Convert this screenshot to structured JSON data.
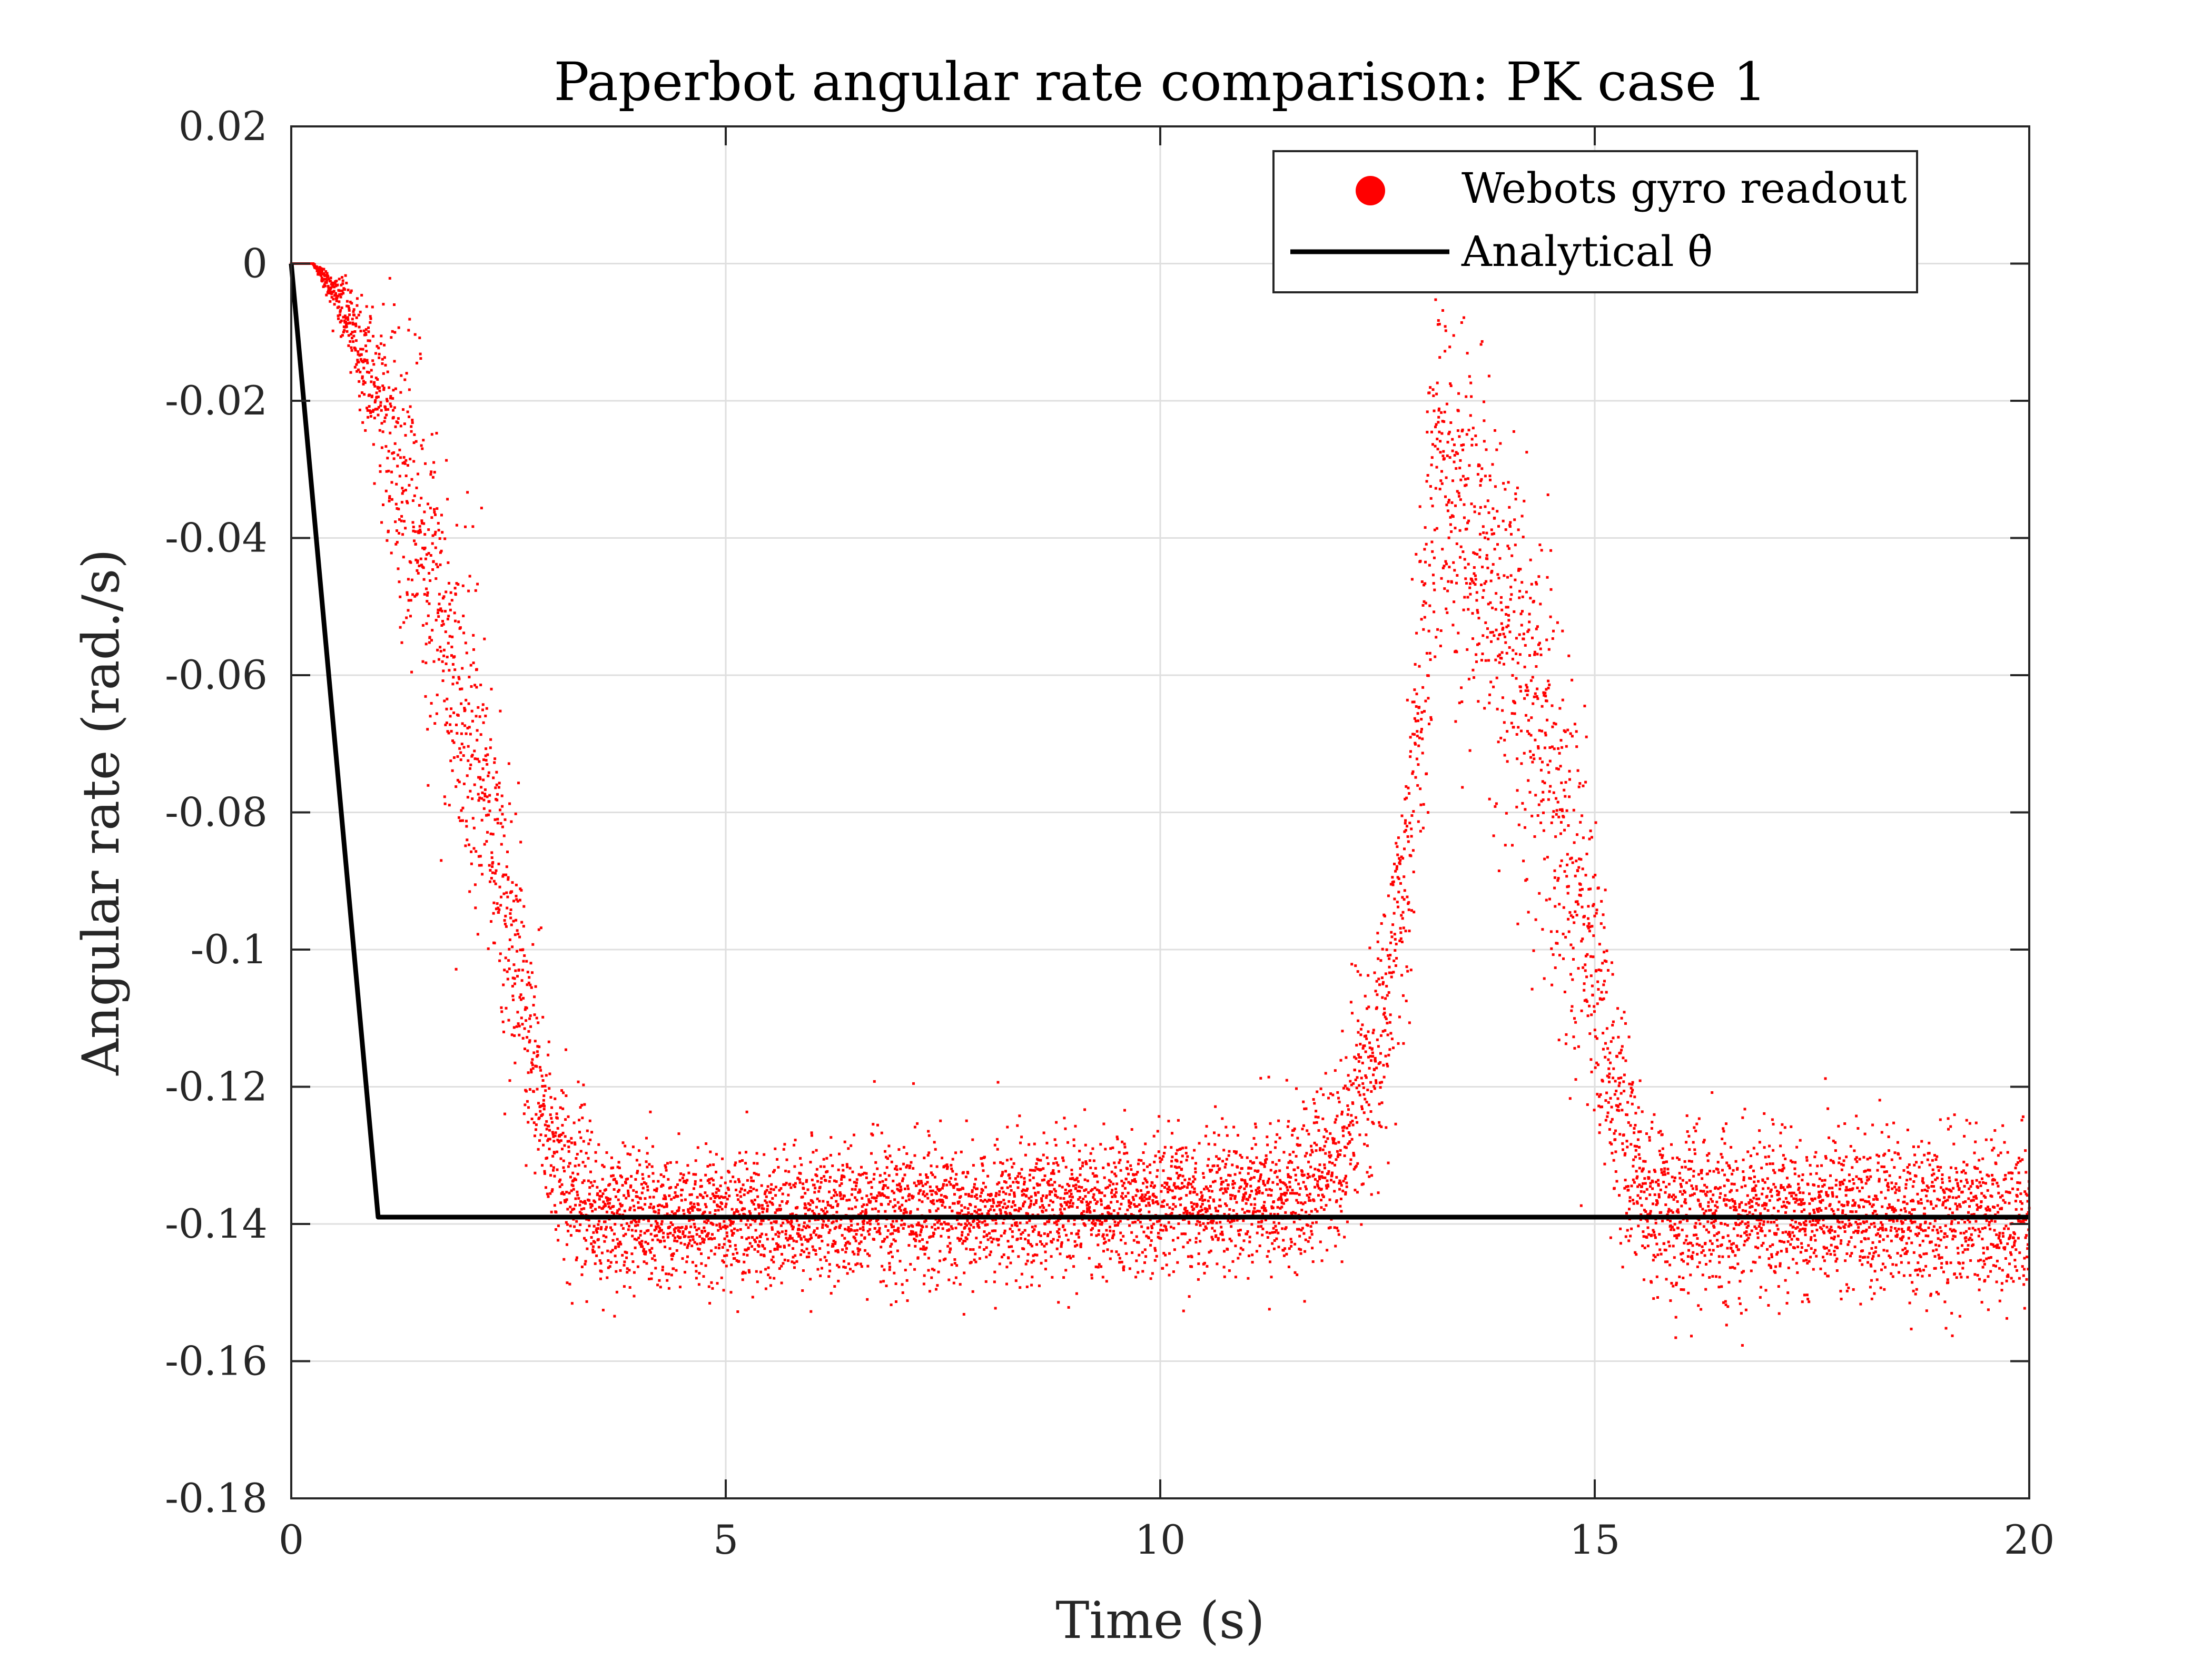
{
  "chart_data": {
    "type": "scatter",
    "title": "Paperbot angular rate comparison: PK case 1",
    "xlabel": "Time (s)",
    "ylabel": "Angular rate (rad./s)",
    "xlim": [
      0,
      20
    ],
    "ylim": [
      -0.18,
      0.02
    ],
    "x_ticks": [
      0,
      5,
      10,
      15,
      20
    ],
    "x_tick_labels": [
      "0",
      "5",
      "10",
      "15",
      "20"
    ],
    "y_ticks": [
      0.02,
      0,
      -0.02,
      -0.04,
      -0.06,
      -0.08,
      -0.1,
      -0.12,
      -0.14,
      -0.16,
      -0.18
    ],
    "y_tick_labels": [
      "0.02",
      "0",
      "-0.02",
      "-0.04",
      "-0.06",
      "-0.08",
      "-0.1",
      "-0.12",
      "-0.14",
      "-0.16",
      "-0.18"
    ],
    "grid": true,
    "legend_position": "top-right",
    "series": [
      {
        "name": "Webots gyro readout",
        "style": "scatter",
        "color": "#ff0000",
        "sampling": {
          "t_start": 0,
          "t_end": 20,
          "n_points": 8000
        },
        "envelope": [
          {
            "t": 0.0,
            "mean": 0.0,
            "spread": 0.0
          },
          {
            "t": 0.25,
            "mean": 0.0,
            "spread": 0.0
          },
          {
            "t": 0.5,
            "mean": -0.004,
            "spread": 0.003
          },
          {
            "t": 1.0,
            "mean": -0.018,
            "spread": 0.012
          },
          {
            "t": 1.5,
            "mean": -0.04,
            "spread": 0.02
          },
          {
            "t": 2.0,
            "mean": -0.065,
            "spread": 0.022
          },
          {
            "t": 2.5,
            "mean": -0.095,
            "spread": 0.02
          },
          {
            "t": 3.0,
            "mean": -0.13,
            "spread": 0.012
          },
          {
            "t": 3.5,
            "mean": -0.139,
            "spread": 0.009
          },
          {
            "t": 6.0,
            "mean": -0.139,
            "spread": 0.009
          },
          {
            "t": 10.0,
            "mean": -0.137,
            "spread": 0.009
          },
          {
            "t": 11.5,
            "mean": -0.136,
            "spread": 0.01
          },
          {
            "t": 12.0,
            "mean": -0.132,
            "spread": 0.012
          },
          {
            "t": 12.5,
            "mean": -0.115,
            "spread": 0.015
          },
          {
            "t": 12.8,
            "mean": -0.09,
            "spread": 0.022
          },
          {
            "t": 13.2,
            "mean": -0.03,
            "spread": 0.025
          },
          {
            "t": 13.6,
            "mean": -0.04,
            "spread": 0.025
          },
          {
            "t": 14.2,
            "mean": -0.06,
            "spread": 0.025
          },
          {
            "t": 14.8,
            "mean": -0.09,
            "spread": 0.025
          },
          {
            "t": 15.2,
            "mean": -0.12,
            "spread": 0.018
          },
          {
            "t": 15.6,
            "mean": -0.138,
            "spread": 0.011
          },
          {
            "t": 20.0,
            "mean": -0.139,
            "spread": 0.01
          }
        ]
      },
      {
        "name": "Analytical θ̇",
        "style": "line",
        "color": "#000000",
        "x": [
          0,
          1,
          20
        ],
        "y": [
          0,
          -0.139,
          -0.139
        ]
      }
    ]
  }
}
